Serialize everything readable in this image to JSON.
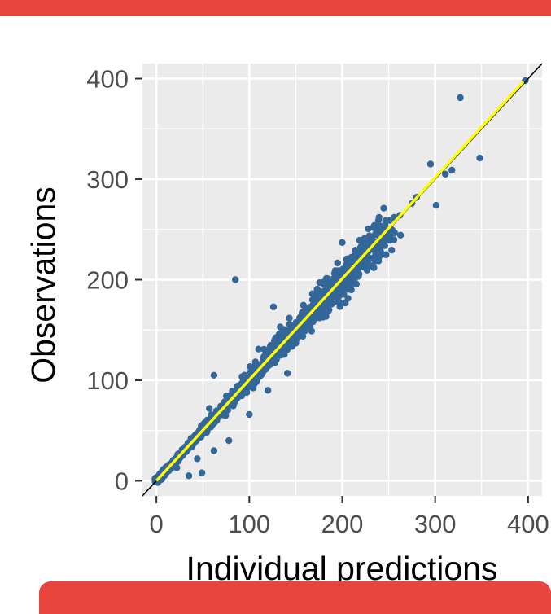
{
  "colors": {
    "banner": "#e8453c",
    "panel": "#ebebeb",
    "grid_major": "#ffffff",
    "points": "#336699",
    "identity_line": "#000000",
    "fit_line": "#ffff00"
  },
  "chart_data": {
    "type": "scatter",
    "xlabel": "Individual predictions",
    "ylabel": "Observations",
    "xlim": [
      -15,
      415
    ],
    "ylim": [
      -15,
      415
    ],
    "xticks": [
      0,
      100,
      200,
      300,
      400
    ],
    "yticks": [
      0,
      100,
      200,
      300,
      400
    ],
    "grid": true,
    "reference_line": {
      "type": "identity",
      "x": [
        -15,
        415
      ],
      "y": [
        -15,
        415
      ]
    },
    "fit_line": {
      "x": [
        0,
        395
      ],
      "y": [
        0,
        397
      ]
    },
    "outliers": [
      {
        "x": 397,
        "y": 398
      },
      {
        "x": 327,
        "y": 381
      },
      {
        "x": 348,
        "y": 321
      },
      {
        "x": 295,
        "y": 315
      },
      {
        "x": 318,
        "y": 309
      },
      {
        "x": 311,
        "y": 305
      },
      {
        "x": 301,
        "y": 274
      },
      {
        "x": 275,
        "y": 276
      },
      {
        "x": 280,
        "y": 282
      },
      {
        "x": 256,
        "y": 262
      },
      {
        "x": 248,
        "y": 244
      },
      {
        "x": 236,
        "y": 246
      },
      {
        "x": 200,
        "y": 237
      },
      {
        "x": 85,
        "y": 200
      },
      {
        "x": 126,
        "y": 173
      },
      {
        "x": 110,
        "y": 131
      },
      {
        "x": 62,
        "y": 105
      },
      {
        "x": 62,
        "y": 30
      },
      {
        "x": 49,
        "y": 8
      },
      {
        "x": 35,
        "y": 5
      },
      {
        "x": 167,
        "y": 149
      },
      {
        "x": 141,
        "y": 107
      },
      {
        "x": 182,
        "y": 165
      },
      {
        "x": 229,
        "y": 230
      },
      {
        "x": 262,
        "y": 264
      },
      {
        "x": 210,
        "y": 219
      },
      {
        "x": 194,
        "y": 182
      },
      {
        "x": 168,
        "y": 180
      },
      {
        "x": 152,
        "y": 156
      },
      {
        "x": 100,
        "y": 66
      },
      {
        "x": 120,
        "y": 90
      },
      {
        "x": 78,
        "y": 40
      },
      {
        "x": 57,
        "y": 72
      },
      {
        "x": 44,
        "y": 22
      },
      {
        "x": 22,
        "y": 13
      }
    ],
    "bulk": {
      "n": 1600,
      "x_max": 250,
      "spread": 0.09,
      "spread_min": 3
    }
  }
}
